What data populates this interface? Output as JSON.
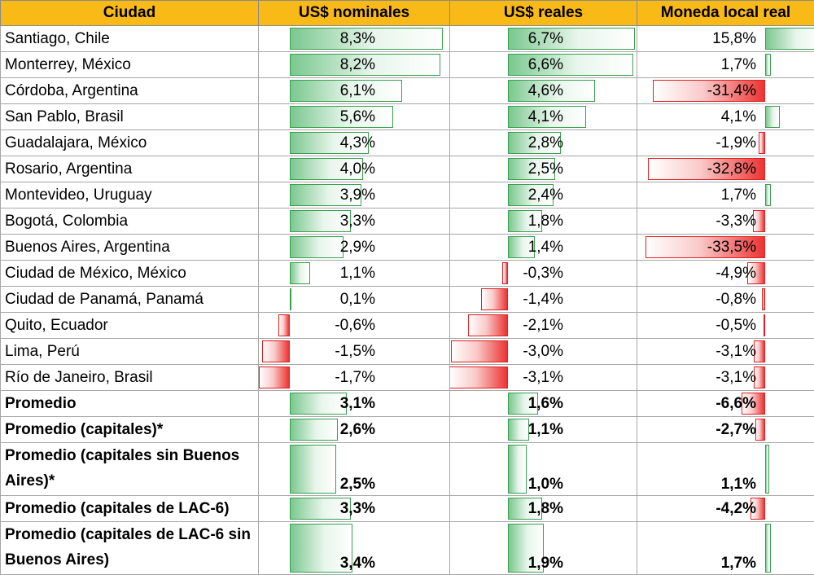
{
  "headers": {
    "city": "Ciudad",
    "nominal": "US$ nominales",
    "real": "US$ reales",
    "local": "Moneda local real"
  },
  "rows": [
    {
      "city": "Santiago, Chile",
      "nominal": "8,3%",
      "real": "6,7%",
      "local": "15,8%",
      "n": 8.3,
      "r": 6.7,
      "l": 15.8
    },
    {
      "city": "Monterrey, México",
      "nominal": "8,2%",
      "real": "6,6%",
      "local": "1,7%",
      "n": 8.2,
      "r": 6.6,
      "l": 1.7
    },
    {
      "city": "Córdoba, Argentina",
      "nominal": "6,1%",
      "real": "4,6%",
      "local": "-31,4%",
      "n": 6.1,
      "r": 4.6,
      "l": -31.4
    },
    {
      "city": "San Pablo, Brasil",
      "nominal": "5,6%",
      "real": "4,1%",
      "local": "4,1%",
      "n": 5.6,
      "r": 4.1,
      "l": 4.1
    },
    {
      "city": "Guadalajara, México",
      "nominal": "4,3%",
      "real": "2,8%",
      "local": "-1,9%",
      "n": 4.3,
      "r": 2.8,
      "l": -1.9
    },
    {
      "city": "Rosario, Argentina",
      "nominal": "4,0%",
      "real": "2,5%",
      "local": "-32,8%",
      "n": 4.0,
      "r": 2.5,
      "l": -32.8
    },
    {
      "city": "Montevideo, Uruguay",
      "nominal": "3,9%",
      "real": "2,4%",
      "local": "1,7%",
      "n": 3.9,
      "r": 2.4,
      "l": 1.7
    },
    {
      "city": "Bogotá, Colombia",
      "nominal": "3,3%",
      "real": "1,8%",
      "local": "-3,3%",
      "n": 3.3,
      "r": 1.8,
      "l": -3.3
    },
    {
      "city": "Buenos Aires, Argentina",
      "nominal": "2,9%",
      "real": "1,4%",
      "local": "-33,5%",
      "n": 2.9,
      "r": 1.4,
      "l": -33.5
    },
    {
      "city": "Ciudad de México, México",
      "nominal": "1,1%",
      "real": "-0,3%",
      "local": "-4,9%",
      "n": 1.1,
      "r": -0.3,
      "l": -4.9
    },
    {
      "city": "Ciudad de Panamá, Panamá",
      "nominal": "0,1%",
      "real": "-1,4%",
      "local": "-0,8%",
      "n": 0.1,
      "r": -1.4,
      "l": -0.8
    },
    {
      "city": "Quito, Ecuador",
      "nominal": "-0,6%",
      "real": "-2,1%",
      "local": "-0,5%",
      "n": -0.6,
      "r": -2.1,
      "l": -0.5
    },
    {
      "city": "Lima, Perú",
      "nominal": "-1,5%",
      "real": "-3,0%",
      "local": "-3,1%",
      "n": -1.5,
      "r": -3.0,
      "l": -3.1
    },
    {
      "city": "Río de Janeiro, Brasil",
      "nominal": "-1,7%",
      "real": "-3,1%",
      "local": "-3,1%",
      "n": -1.7,
      "r": -3.1,
      "l": -3.1
    },
    {
      "city": "Promedio",
      "nominal": "3,1%",
      "real": "1,6%",
      "local": "-6,6%",
      "n": 3.1,
      "r": 1.6,
      "l": -6.6,
      "bold": true
    },
    {
      "city": "Promedio (capitales)*",
      "nominal": "2,6%",
      "real": "1,1%",
      "local": "-2,7%",
      "n": 2.6,
      "r": 1.1,
      "l": -2.7,
      "bold": true
    },
    {
      "city": "Promedio (capitales sin Buenos Aires)*",
      "nominal": "2,5%",
      "real": "1,0%",
      "local": "1,1%",
      "n": 2.5,
      "r": 1.0,
      "l": 1.1,
      "bold": true,
      "tall": true
    },
    {
      "city": "Promedio (capitales de LAC-6)",
      "nominal": "3,3%",
      "real": "1,8%",
      "local": "-4,2%",
      "n": 3.3,
      "r": 1.8,
      "l": -4.2,
      "bold": true
    },
    {
      "city": "Promedio (capitales de LAC-6 sin Buenos Aires)",
      "nominal": "3,4%",
      "real": "1,9%",
      "local": "1,7%",
      "n": 3.4,
      "r": 1.9,
      "l": 1.7,
      "bold": true,
      "tall": true
    }
  ],
  "colors": {
    "header_bg": "#f9b917",
    "positive_bar": "#63be7b",
    "negative_bar": "#e02020"
  }
}
